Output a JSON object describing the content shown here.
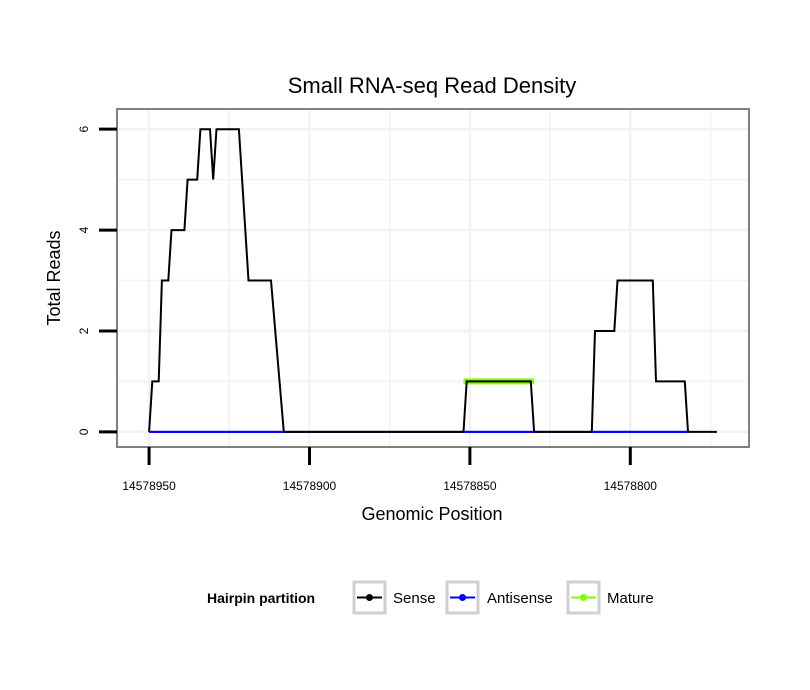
{
  "chart_data": {
    "type": "line",
    "title": "Small RNA-seq Read Density",
    "xlabel": "Genomic Position",
    "ylabel": "Total Reads",
    "x_reversed": true,
    "xlim": [
      14578960,
      14578763
    ],
    "ylim": [
      -0.3,
      6.4
    ],
    "x_ticks": [
      14578950,
      14578900,
      14578850,
      14578800
    ],
    "x_tick_labels": [
      "14578950",
      "14578900",
      "14578850",
      "14578800"
    ],
    "y_ticks": [
      0,
      2,
      4,
      6
    ],
    "y_tick_labels": [
      "0",
      "2",
      "4",
      "6"
    ],
    "grid": true,
    "legend": {
      "title": "Hairpin partition",
      "position": "bottom",
      "entries": [
        {
          "label": "Sense",
          "color": "#000000"
        },
        {
          "label": "Antisense",
          "color": "#0000ff"
        },
        {
          "label": "Mature",
          "color": "#7fff00"
        }
      ]
    },
    "series": [
      {
        "name": "Sense",
        "color": "#000000",
        "points": [
          [
            14578950,
            0
          ],
          [
            14578949,
            1
          ],
          [
            14578947,
            1
          ],
          [
            14578946,
            3
          ],
          [
            14578944,
            3
          ],
          [
            14578943,
            4
          ],
          [
            14578939,
            4
          ],
          [
            14578938,
            5
          ],
          [
            14578935,
            5
          ],
          [
            14578934,
            6
          ],
          [
            14578931,
            6
          ],
          [
            14578930,
            5
          ],
          [
            14578929,
            6
          ],
          [
            14578922,
            6
          ],
          [
            14578919,
            3
          ],
          [
            14578912,
            3
          ],
          [
            14578908,
            0
          ],
          [
            14578852,
            0
          ],
          [
            14578851,
            1
          ],
          [
            14578831,
            1
          ],
          [
            14578830,
            0
          ],
          [
            14578812,
            0
          ],
          [
            14578811,
            2
          ],
          [
            14578805,
            2
          ],
          [
            14578804,
            3
          ],
          [
            14578793,
            3
          ],
          [
            14578792,
            1
          ],
          [
            14578783,
            1
          ],
          [
            14578782,
            0
          ],
          [
            14578773,
            0
          ]
        ]
      },
      {
        "name": "Antisense",
        "color": "#0000ff",
        "points": [
          [
            14578950,
            0
          ],
          [
            14578908,
            0
          ],
          [
            14578852,
            0
          ],
          [
            14578830,
            0
          ],
          [
            14578812,
            0
          ],
          [
            14578782,
            0
          ]
        ]
      },
      {
        "name": "Mature",
        "color": "#7fff00",
        "points": [
          [
            14578852,
            1
          ],
          [
            14578830,
            1
          ]
        ]
      }
    ]
  }
}
